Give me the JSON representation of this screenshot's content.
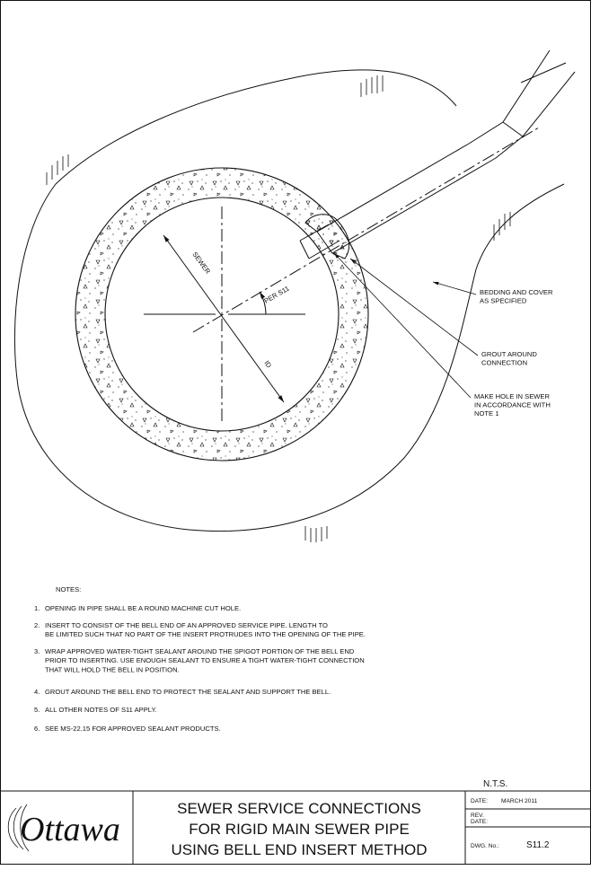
{
  "drawing": {
    "labels": {
      "sewer": "SEWER",
      "per": "PER S11",
      "id": "ID",
      "bedding": [
        "BEDDING AND COVER",
        "AS SPECIFIED"
      ],
      "grout": [
        "GROUT AROUND",
        "CONNECTION"
      ],
      "hole": [
        "MAKE HOLE IN SEWER",
        "IN ACCORDANCE WITH",
        "NOTE 1"
      ]
    }
  },
  "notes": {
    "heading": "NOTES:",
    "items": [
      {
        "number": "1.",
        "lines": [
          "OPENING IN PIPE SHALL BE A ROUND MACHINE CUT HOLE."
        ]
      },
      {
        "number": "2.",
        "lines": [
          "INSERT TO CONSIST OF THE BELL END OF AN APPROVED SERVICE PIPE. LENGTH TO",
          "BE LIMITED SUCH THAT NO PART OF THE INSERT PROTRUDES INTO THE OPENING OF THE PIPE."
        ]
      },
      {
        "number": "3.",
        "lines": [
          "WRAP APPROVED WATER-TIGHT SEALANT AROUND THE SPIGOT PORTION OF THE BELL END",
          "PRIOR TO INSERTING. USE ENOUGH SEALANT TO ENSURE A TIGHT WATER-TIGHT CONNECTION",
          "THAT WILL HOLD THE BELL IN POSITION."
        ]
      },
      {
        "number": "4.",
        "lines": [
          "GROUT AROUND THE BELL END TO PROTECT THE SEALANT AND SUPPORT THE BELL."
        ]
      },
      {
        "number": "5.",
        "lines": [
          "ALL OTHER NOTES OF S11 APPLY."
        ]
      },
      {
        "number": "6.",
        "lines": [
          "SEE MS-22.15 FOR APPROVED SEALANT PRODUCTS."
        ]
      }
    ]
  },
  "title_block": {
    "scale": "N.T.S.",
    "logo": "Ottawa",
    "title": [
      "SEWER SERVICE CONNECTIONS",
      "FOR RIGID MAIN SEWER PIPE",
      "USING BELL END INSERT METHOD"
    ],
    "date_label": "DATE:",
    "date": "MARCH 2011",
    "rev_date_label": [
      "REV.",
      "DATE:"
    ],
    "dwg_label": "DWG. No.:",
    "dwg": "S11.2"
  }
}
